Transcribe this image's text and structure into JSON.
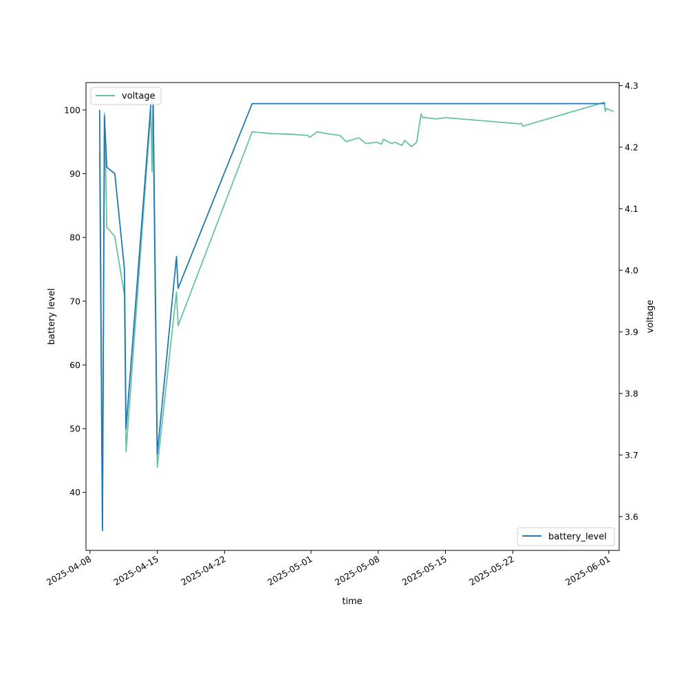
{
  "chart_data": {
    "type": "line",
    "xlabel": "time",
    "ylabel": "battery level",
    "y2label": "voltage",
    "xlim": [
      "2025-04-07T14:00",
      "2025-06-02T02:00"
    ],
    "ylim": [
      30.9,
      104.3
    ],
    "y2lim": [
      3.545,
      4.305
    ],
    "xticks": [
      "2025-04-08",
      "2025-04-15",
      "2025-04-22",
      "2025-05-01",
      "2025-05-08",
      "2025-05-15",
      "2025-05-22",
      "2025-06-01"
    ],
    "yticks": [
      40,
      50,
      60,
      70,
      80,
      90,
      100
    ],
    "y2ticks": [
      "3.6",
      "3.7",
      "3.8",
      "3.9",
      "4.0",
      "4.1",
      "4.2",
      "4.3"
    ],
    "grid": false,
    "series": [
      {
        "name": "battery_level",
        "axis": "left",
        "color": "#1f77b4",
        "legend_position": "lower-right",
        "points": [
          [
            "2025-04-09T00:00",
            100
          ],
          [
            "2025-04-09T07:00",
            34
          ],
          [
            "2025-04-09T12:00",
            99
          ],
          [
            "2025-04-09T18:00",
            91
          ],
          [
            "2025-04-10T14:00",
            90
          ],
          [
            "2025-04-11T14:00",
            75
          ],
          [
            "2025-04-11T18:00",
            50
          ],
          [
            "2025-04-14T08:00",
            101
          ],
          [
            "2025-04-14T12:00",
            101
          ],
          [
            "2025-04-14T14:00",
            101
          ],
          [
            "2025-04-15T00:00",
            46
          ],
          [
            "2025-04-17T00:00",
            77
          ],
          [
            "2025-04-17T04:00",
            72
          ],
          [
            "2025-04-24T21:00",
            101
          ],
          [
            "2025-05-31T15:00",
            101
          ]
        ]
      },
      {
        "name": "voltage",
        "axis": "right",
        "color": "#66c2a5",
        "legend_position": "upper-left",
        "points": [
          [
            "2025-04-09T00:00",
            4.19
          ],
          [
            "2025-04-09T07:00",
            3.58
          ],
          [
            "2025-04-09T12:00",
            4.255
          ],
          [
            "2025-04-09T18:00",
            4.07
          ],
          [
            "2025-04-10T14:00",
            4.055
          ],
          [
            "2025-04-11T14:00",
            3.96
          ],
          [
            "2025-04-11T18:00",
            3.705
          ],
          [
            "2025-04-14T08:00",
            4.26
          ],
          [
            "2025-04-14T11:00",
            4.16
          ],
          [
            "2025-04-14T13:00",
            4.275
          ],
          [
            "2025-04-15T00:00",
            3.68
          ],
          [
            "2025-04-17T00:00",
            3.965
          ],
          [
            "2025-04-17T04:00",
            3.91
          ],
          [
            "2025-04-24T21:00",
            4.225
          ],
          [
            "2025-04-27T00:00",
            4.222
          ],
          [
            "2025-04-29T00:00",
            4.221
          ],
          [
            "2025-04-30T16:00",
            4.219
          ],
          [
            "2025-04-30T21:00",
            4.216
          ],
          [
            "2025-05-01T16:00",
            4.225
          ],
          [
            "2025-05-02T16:00",
            4.222
          ],
          [
            "2025-05-04T00:00",
            4.219
          ],
          [
            "2025-05-04T16:00",
            4.209
          ],
          [
            "2025-05-05T12:00",
            4.213
          ],
          [
            "2025-05-06T00:00",
            4.215
          ],
          [
            "2025-05-06T17:00",
            4.206
          ],
          [
            "2025-05-07T20:00",
            4.208
          ],
          [
            "2025-05-08T08:00",
            4.205
          ],
          [
            "2025-05-08T13:00",
            4.213
          ],
          [
            "2025-05-09T09:00",
            4.206
          ],
          [
            "2025-05-09T18:00",
            4.208
          ],
          [
            "2025-05-10T11:00",
            4.203
          ],
          [
            "2025-05-10T18:00",
            4.211
          ],
          [
            "2025-05-11T11:00",
            4.201
          ],
          [
            "2025-05-12T00:00",
            4.208
          ],
          [
            "2025-05-12T11:00",
            4.254
          ],
          [
            "2025-05-12T15:00",
            4.248
          ],
          [
            "2025-05-13T00:00",
            4.248
          ],
          [
            "2025-05-14T00:00",
            4.246
          ],
          [
            "2025-05-15T00:00",
            4.248
          ],
          [
            "2025-05-22T16:00",
            4.238
          ],
          [
            "2025-05-22T21:00",
            4.239
          ],
          [
            "2025-05-23T01:00",
            4.234
          ],
          [
            "2025-05-31T13:00",
            4.273
          ],
          [
            "2025-05-31T15:00",
            4.258
          ],
          [
            "2025-05-31T18:00",
            4.263
          ],
          [
            "2025-06-01T12:00",
            4.258
          ]
        ]
      }
    ]
  }
}
